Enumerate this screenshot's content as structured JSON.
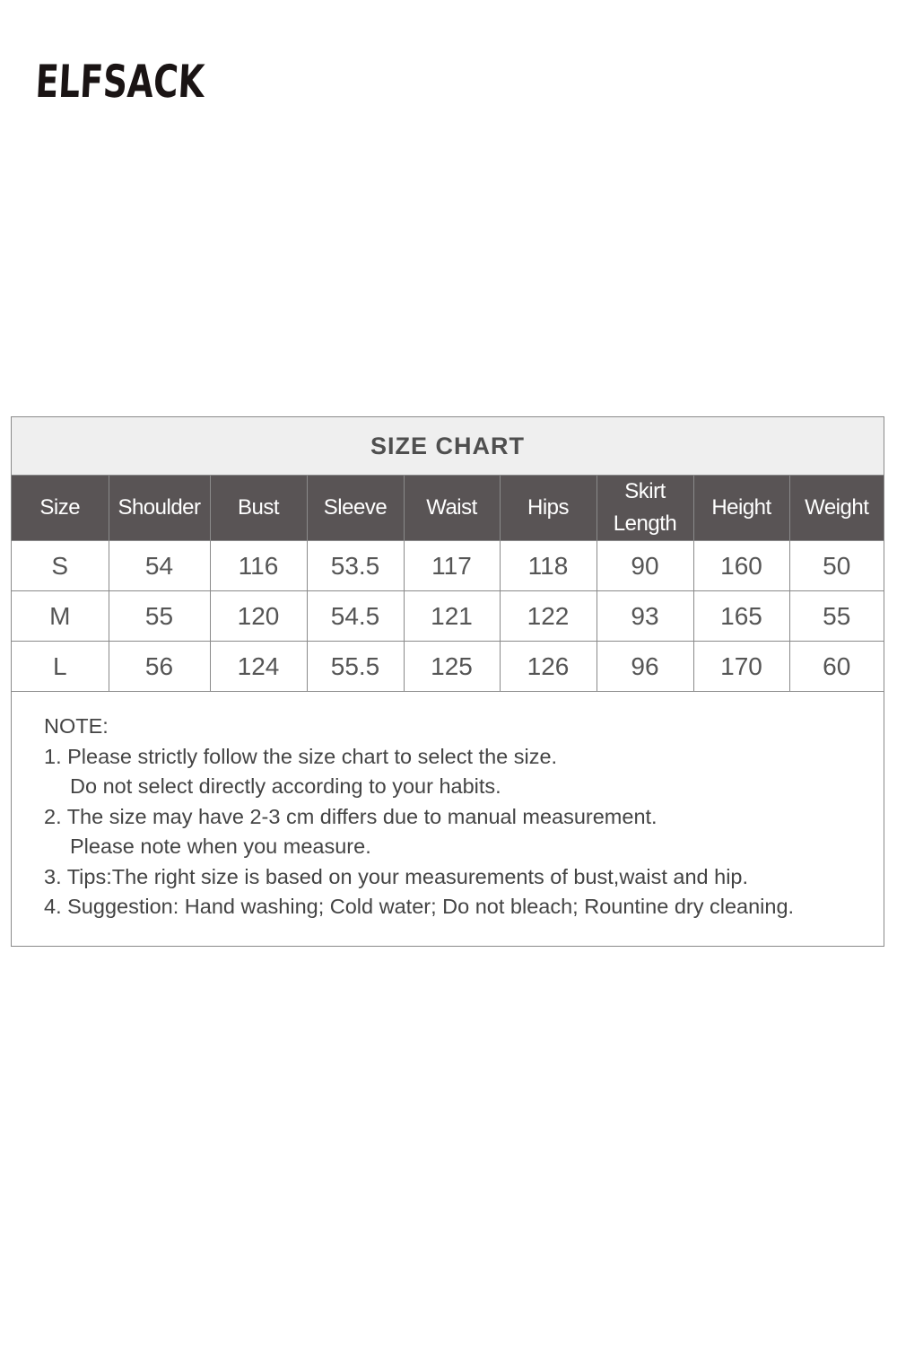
{
  "brand": {
    "logo_text": "ELFSACK"
  },
  "size_chart": {
    "title": "SIZE CHART",
    "headers": [
      "Size",
      "Shoulder",
      "Bust",
      "Sleeve",
      "Waist",
      "Hips",
      "Skirt Length",
      "Height",
      "Weight"
    ],
    "rows": [
      [
        "S",
        "54",
        "116",
        "53.5",
        "117",
        "118",
        "90",
        "160",
        "50"
      ],
      [
        "M",
        "55",
        "120",
        "54.5",
        "121",
        "122",
        "93",
        "165",
        "55"
      ],
      [
        "L",
        "56",
        "124",
        "55.5",
        "125",
        "126",
        "96",
        "170",
        "60"
      ]
    ]
  },
  "notes": {
    "heading": "NOTE:",
    "lines": [
      "1. Please strictly follow the size chart to select the size.",
      "Do not select directly according to your habits.",
      "2. The size may have 2-3 cm differs due to manual measurement.",
      "Please note when you measure.",
      "3. Tips:The right size is based on your measurements of bust,waist and hip.",
      "4. Suggestion: Hand washing; Cold water; Do not bleach; Rountine dry cleaning."
    ]
  }
}
